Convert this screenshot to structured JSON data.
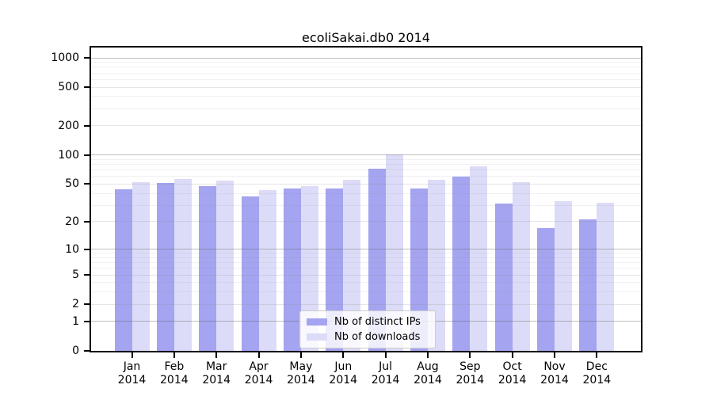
{
  "chart_data": {
    "type": "bar",
    "title": "ecoliSakai.db0 2014",
    "categories": [
      "Jan 2014",
      "Feb 2014",
      "Mar 2014",
      "Apr 2014",
      "May 2014",
      "Jun 2014",
      "Jul 2014",
      "Aug 2014",
      "Sep 2014",
      "Oct 2014",
      "Nov 2014",
      "Dec 2014"
    ],
    "series": [
      {
        "name": "Nb of distinct IPs",
        "color": "#a4a4f0",
        "values": [
          44,
          51,
          48,
          37,
          45,
          45,
          72,
          45,
          60,
          31,
          17,
          21
        ]
      },
      {
        "name": "Nb of downloads",
        "color": "#dcdcf8",
        "values": [
          52,
          56,
          54,
          43,
          48,
          55,
          102,
          55,
          77,
          52,
          33,
          32
        ]
      }
    ],
    "yscale": "log1p",
    "yticks": [
      0,
      1,
      2,
      5,
      10,
      20,
      50,
      100,
      200,
      500,
      1000
    ],
    "ylim": [
      0,
      1280
    ],
    "xlabel": "",
    "ylabel": "",
    "grid": true,
    "legend_position": "inside-bottom-center"
  }
}
